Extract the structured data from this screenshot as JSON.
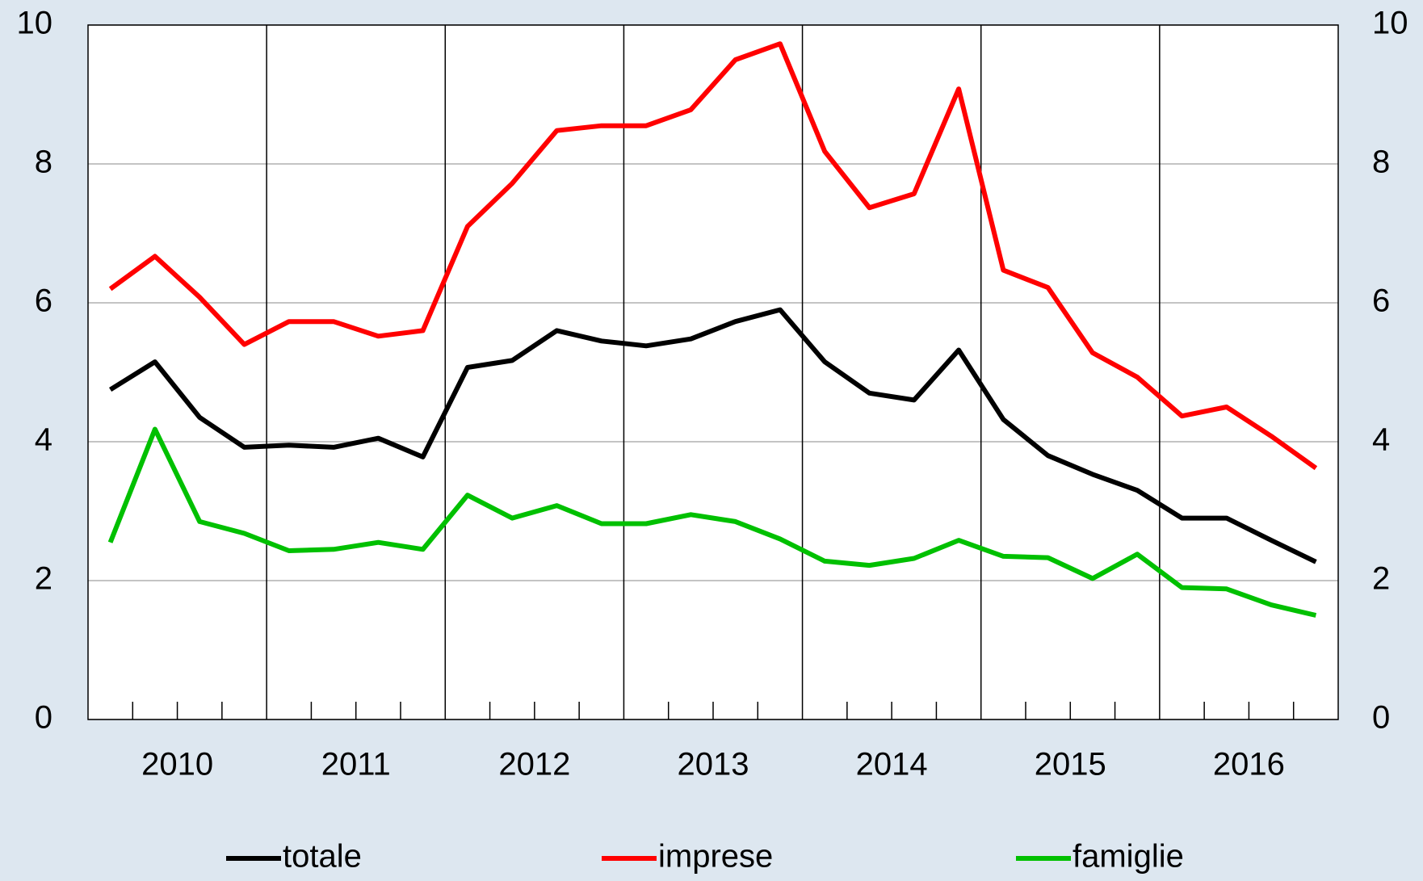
{
  "chart_data": {
    "type": "line",
    "categories": [
      null,
      "2010",
      null,
      null,
      null,
      "2011",
      null,
      null,
      null,
      "2012",
      null,
      null,
      null,
      "2013",
      null,
      null,
      null,
      "2014",
      null,
      null,
      null,
      "2015",
      null,
      null,
      null,
      "2016",
      null,
      null
    ],
    "series": [
      {
        "name": "totale",
        "color": "#000000",
        "values": [
          4.75,
          5.15,
          4.35,
          3.92,
          3.95,
          3.92,
          4.05,
          3.78,
          5.07,
          5.17,
          5.6,
          5.45,
          5.38,
          5.48,
          5.73,
          5.9,
          5.15,
          4.7,
          4.6,
          5.32,
          4.32,
          3.8,
          3.53,
          3.3,
          2.9,
          2.9,
          2.58,
          2.27
        ]
      },
      {
        "name": "imprese",
        "color": "#ff0000",
        "values": [
          6.2,
          6.67,
          6.08,
          5.4,
          5.73,
          5.73,
          5.52,
          5.6,
          7.1,
          7.72,
          8.48,
          8.55,
          8.55,
          8.78,
          9.5,
          9.73,
          8.18,
          7.37,
          7.57,
          9.08,
          6.47,
          6.22,
          5.28,
          4.93,
          4.37,
          4.5,
          4.08,
          3.62
        ]
      },
      {
        "name": "famiglie",
        "color": "#00c000",
        "values": [
          2.55,
          4.18,
          2.85,
          2.68,
          2.43,
          2.45,
          2.55,
          2.45,
          3.23,
          2.9,
          3.08,
          2.82,
          2.82,
          2.95,
          2.85,
          2.6,
          2.28,
          2.22,
          2.32,
          2.58,
          2.35,
          2.33,
          2.03,
          2.38,
          1.9,
          1.88,
          1.65,
          1.5
        ]
      }
    ],
    "ylim": [
      0,
      10
    ],
    "yticks": [
      0,
      2,
      4,
      6,
      8,
      10
    ],
    "y2lim": [
      0,
      10
    ],
    "y2ticks": [
      0,
      2,
      4,
      6,
      8,
      10
    ],
    "grid": true
  }
}
